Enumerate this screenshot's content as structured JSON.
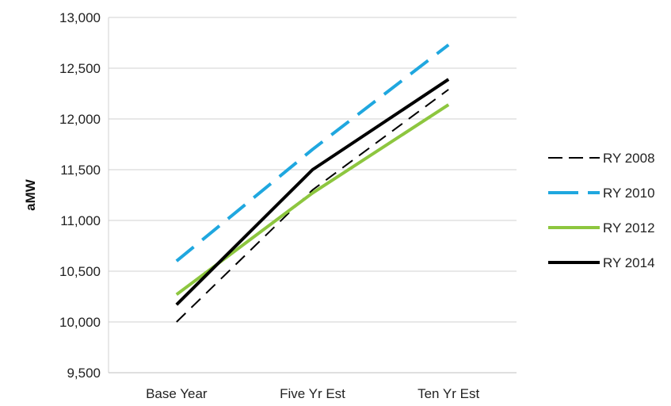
{
  "chart_data": {
    "type": "line",
    "title": "",
    "xlabel": "",
    "ylabel": "aMW",
    "categories": [
      "Base Year",
      "Five Yr Est",
      "Ten Yr Est"
    ],
    "ylim": [
      9500,
      13000
    ],
    "yticks": [
      9500,
      10000,
      10500,
      11000,
      11500,
      12000,
      12500,
      13000
    ],
    "ytick_labels": [
      "9,500",
      "10,000",
      "10,500",
      "11,000",
      "11,500",
      "12,000",
      "12,500",
      "13,000"
    ],
    "grid": true,
    "legend_position": "right",
    "series": [
      {
        "name": "RY 2008",
        "values": [
          10000,
          11300,
          12290
        ],
        "color": "#000000",
        "style": "dashed",
        "width": 2
      },
      {
        "name": "RY 2010",
        "values": [
          10600,
          11700,
          12730
        ],
        "color": "#1FA7DF",
        "style": "long-dashed",
        "width": 4
      },
      {
        "name": "RY 2012",
        "values": [
          10270,
          11270,
          12140
        ],
        "color": "#8DC63F",
        "style": "solid",
        "width": 4
      },
      {
        "name": "RY 2014",
        "values": [
          10170,
          11500,
          12390
        ],
        "color": "#000000",
        "style": "solid",
        "width": 4
      }
    ]
  }
}
